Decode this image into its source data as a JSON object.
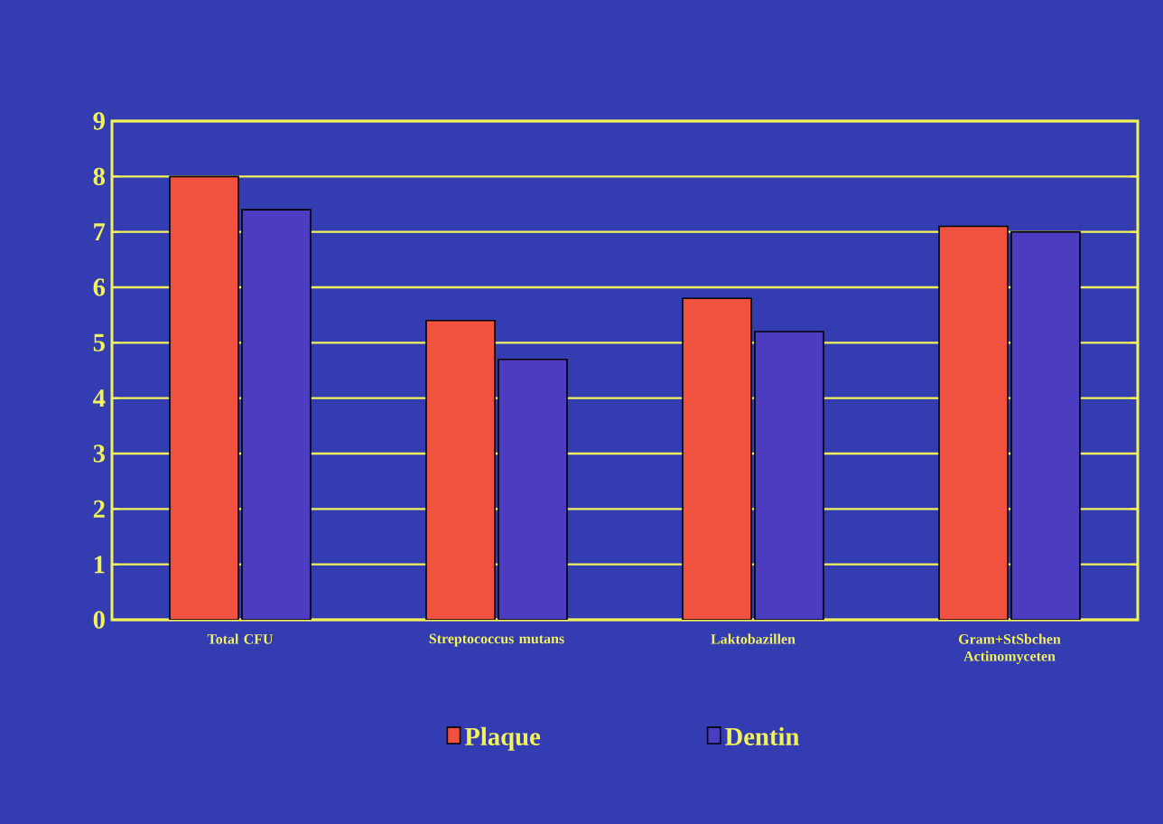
{
  "chart_data": {
    "type": "bar",
    "categories": [
      "Total CFU",
      "Streptococcus mutans",
      "Laktobazillen",
      "Gram+StSbchen Actinomyceten"
    ],
    "series": [
      {
        "name": "Plaque",
        "color": "#f0523f",
        "values": [
          8.0,
          5.4,
          5.8,
          7.1
        ]
      },
      {
        "name": "Dentin",
        "color": "#4b3cc0",
        "values": [
          7.4,
          4.7,
          5.2,
          7.0
        ]
      }
    ],
    "ylim": [
      0,
      9
    ],
    "yticks": [
      0,
      1,
      2,
      3,
      4,
      5,
      6,
      7,
      8,
      9
    ],
    "grid": "y",
    "legend": "bottom"
  }
}
